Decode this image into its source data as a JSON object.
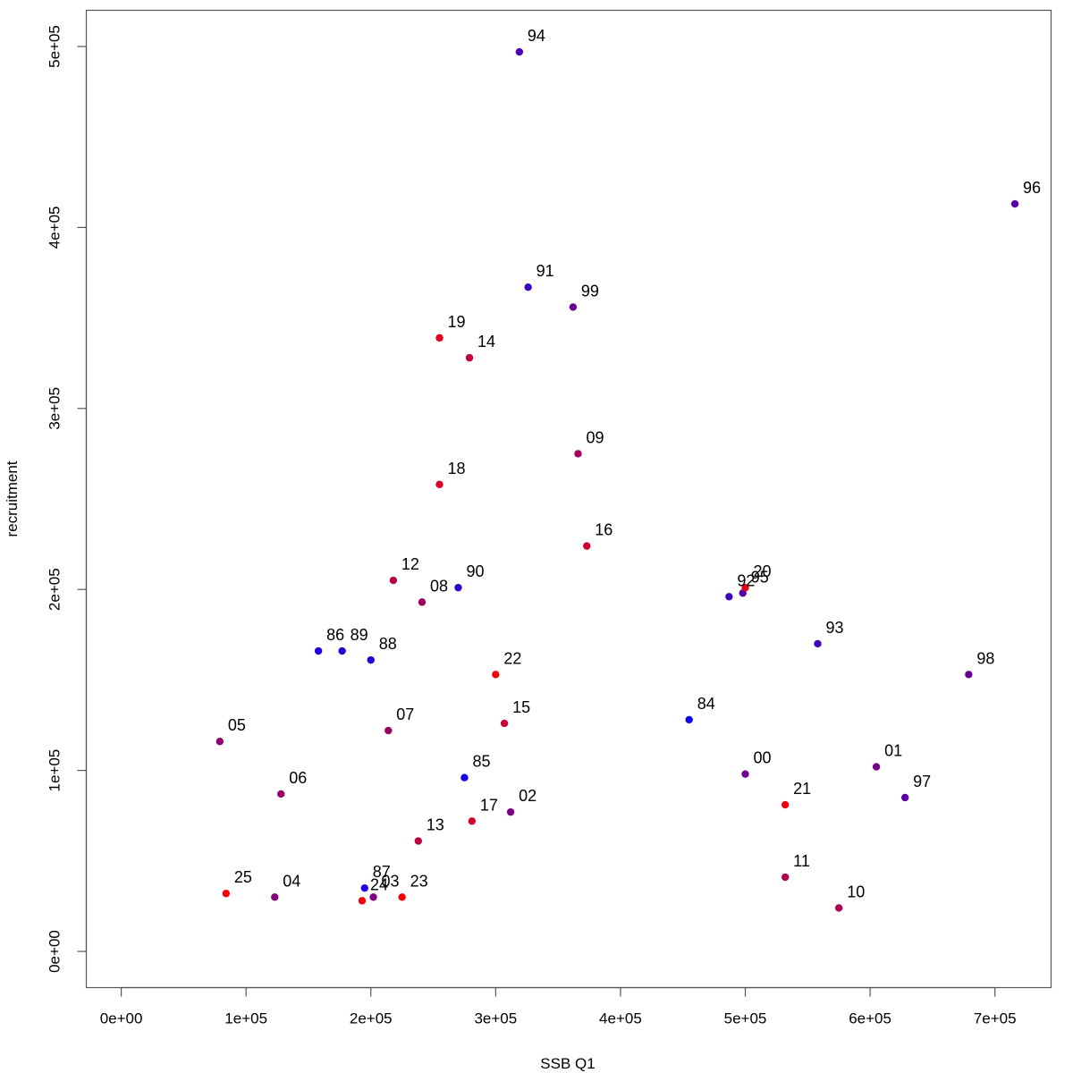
{
  "chart_data": {
    "type": "scatter",
    "title": "",
    "xlabel": "SSB Q1",
    "ylabel": "recruitment",
    "xlim": [
      -28000,
      745000
    ],
    "ylim": [
      -20000,
      520000
    ],
    "xticks": [
      0,
      100000,
      200000,
      300000,
      400000,
      500000,
      600000,
      700000
    ],
    "xtick_labels": [
      "0e+00",
      "1e+05",
      "2e+05",
      "3e+05",
      "4e+05",
      "5e+05",
      "6e+05",
      "7e+05"
    ],
    "yticks": [
      0,
      100000,
      200000,
      300000,
      400000,
      500000
    ],
    "ytick_labels": [
      "0e+00",
      "1e+05",
      "2e+05",
      "3e+05",
      "4e+05",
      "5e+05"
    ],
    "grid": false,
    "legend": "none",
    "color_scale": {
      "first_year": "#0000ff",
      "last_year": "#ff0000"
    },
    "points": [
      {
        "label": "84",
        "x": 455000,
        "y": 128000,
        "color": "#0f00f0"
      },
      {
        "label": "85",
        "x": 275000,
        "y": 96000,
        "color": "#1500ea"
      },
      {
        "label": "86",
        "x": 158000,
        "y": 166000,
        "color": "#1a00e5"
      },
      {
        "label": "87",
        "x": 195000,
        "y": 35000,
        "color": "#1f00e0"
      },
      {
        "label": "88",
        "x": 200000,
        "y": 161000,
        "color": "#2600d9"
      },
      {
        "label": "89",
        "x": 177000,
        "y": 166000,
        "color": "#2c00d3"
      },
      {
        "label": "90",
        "x": 270000,
        "y": 201000,
        "color": "#3200cd"
      },
      {
        "label": "91",
        "x": 326000,
        "y": 367000,
        "color": "#3900c6"
      },
      {
        "label": "92",
        "x": 487000,
        "y": 196000,
        "color": "#3f00c0"
      },
      {
        "label": "93",
        "x": 558000,
        "y": 170000,
        "color": "#4500ba"
      },
      {
        "label": "94",
        "x": 319000,
        "y": 497000,
        "color": "#4b00b4"
      },
      {
        "label": "95",
        "x": 498000,
        "y": 198000,
        "color": "#5100ae"
      },
      {
        "label": "96",
        "x": 716000,
        "y": 413000,
        "color": "#5700a8"
      },
      {
        "label": "97",
        "x": 628000,
        "y": 85000,
        "color": "#5d00a2"
      },
      {
        "label": "98",
        "x": 679000,
        "y": 153000,
        "color": "#63009c"
      },
      {
        "label": "99",
        "x": 362000,
        "y": 356000,
        "color": "#690096"
      },
      {
        "label": "00",
        "x": 500000,
        "y": 98000,
        "color": "#6f0090"
      },
      {
        "label": "01",
        "x": 605000,
        "y": 102000,
        "color": "#75008a"
      },
      {
        "label": "02",
        "x": 312000,
        "y": 77000,
        "color": "#7b0084"
      },
      {
        "label": "03",
        "x": 202000,
        "y": 30000,
        "color": "#81007e"
      },
      {
        "label": "04",
        "x": 123000,
        "y": 30000,
        "color": "#870078"
      },
      {
        "label": "05",
        "x": 79000,
        "y": 116000,
        "color": "#8d0072"
      },
      {
        "label": "06",
        "x": 128000,
        "y": 87000,
        "color": "#93006c"
      },
      {
        "label": "07",
        "x": 214000,
        "y": 122000,
        "color": "#990066"
      },
      {
        "label": "08",
        "x": 241000,
        "y": 193000,
        "color": "#9f0060"
      },
      {
        "label": "09",
        "x": 366000,
        "y": 275000,
        "color": "#a5005a"
      },
      {
        "label": "10",
        "x": 575000,
        "y": 24000,
        "color": "#ab0054"
      },
      {
        "label": "11",
        "x": 532000,
        "y": 41000,
        "color": "#b1004e"
      },
      {
        "label": "12",
        "x": 218000,
        "y": 205000,
        "color": "#b70048"
      },
      {
        "label": "13",
        "x": 238000,
        "y": 61000,
        "color": "#bd0042"
      },
      {
        "label": "14",
        "x": 279000,
        "y": 328000,
        "color": "#c3003c"
      },
      {
        "label": "15",
        "x": 307000,
        "y": 126000,
        "color": "#c90036"
      },
      {
        "label": "16",
        "x": 373000,
        "y": 224000,
        "color": "#cf0030"
      },
      {
        "label": "17",
        "x": 281000,
        "y": 72000,
        "color": "#d5002a"
      },
      {
        "label": "18",
        "x": 255000,
        "y": 258000,
        "color": "#db0024"
      },
      {
        "label": "19",
        "x": 255000,
        "y": 339000,
        "color": "#e1001e"
      },
      {
        "label": "20",
        "x": 500000,
        "y": 201000,
        "color": "#e70018"
      },
      {
        "label": "21",
        "x": 532000,
        "y": 81000,
        "color": "#ed0012"
      },
      {
        "label": "22",
        "x": 300000,
        "y": 153000,
        "color": "#f3000c"
      },
      {
        "label": "23",
        "x": 225000,
        "y": 30000,
        "color": "#f70008"
      },
      {
        "label": "24",
        "x": 193000,
        "y": 28000,
        "color": "#fa0005"
      },
      {
        "label": "25",
        "x": 84000,
        "y": 32000,
        "color": "#ff0000"
      }
    ]
  }
}
